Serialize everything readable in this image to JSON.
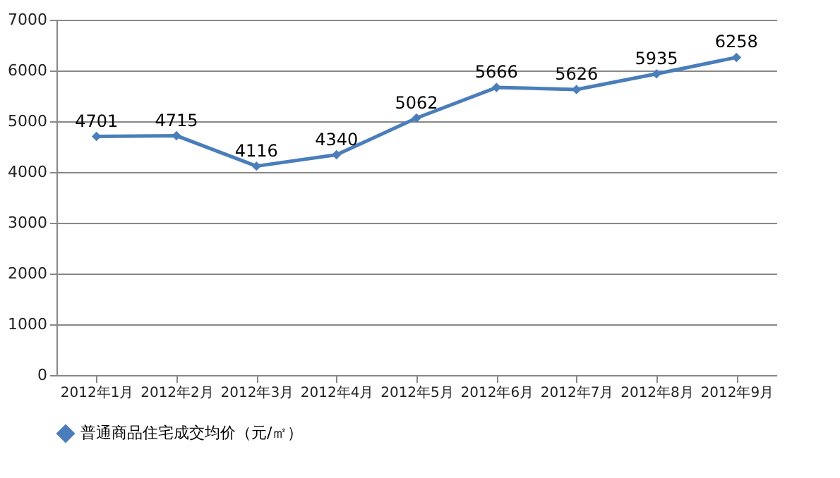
{
  "chart_data": {
    "type": "line",
    "categories": [
      "2012年1月",
      "2012年2月",
      "2012年3月",
      "2012年4月",
      "2012年5月",
      "2012年6月",
      "2012年7月",
      "2012年8月",
      "2012年9月"
    ],
    "series": [
      {
        "name": "普通商品住宅成交均价（元/㎡）",
        "color": "#4a7ebb",
        "values": [
          4701,
          4715,
          4116,
          4340,
          5062,
          5666,
          5626,
          5935,
          6258
        ]
      }
    ],
    "ylim": [
      0,
      7000
    ],
    "yticks": [
      0,
      1000,
      2000,
      3000,
      4000,
      5000,
      6000,
      7000
    ],
    "grid": "y",
    "legend": "bottom",
    "marker": "diamond",
    "line_style": "solid",
    "data_labels": true
  }
}
